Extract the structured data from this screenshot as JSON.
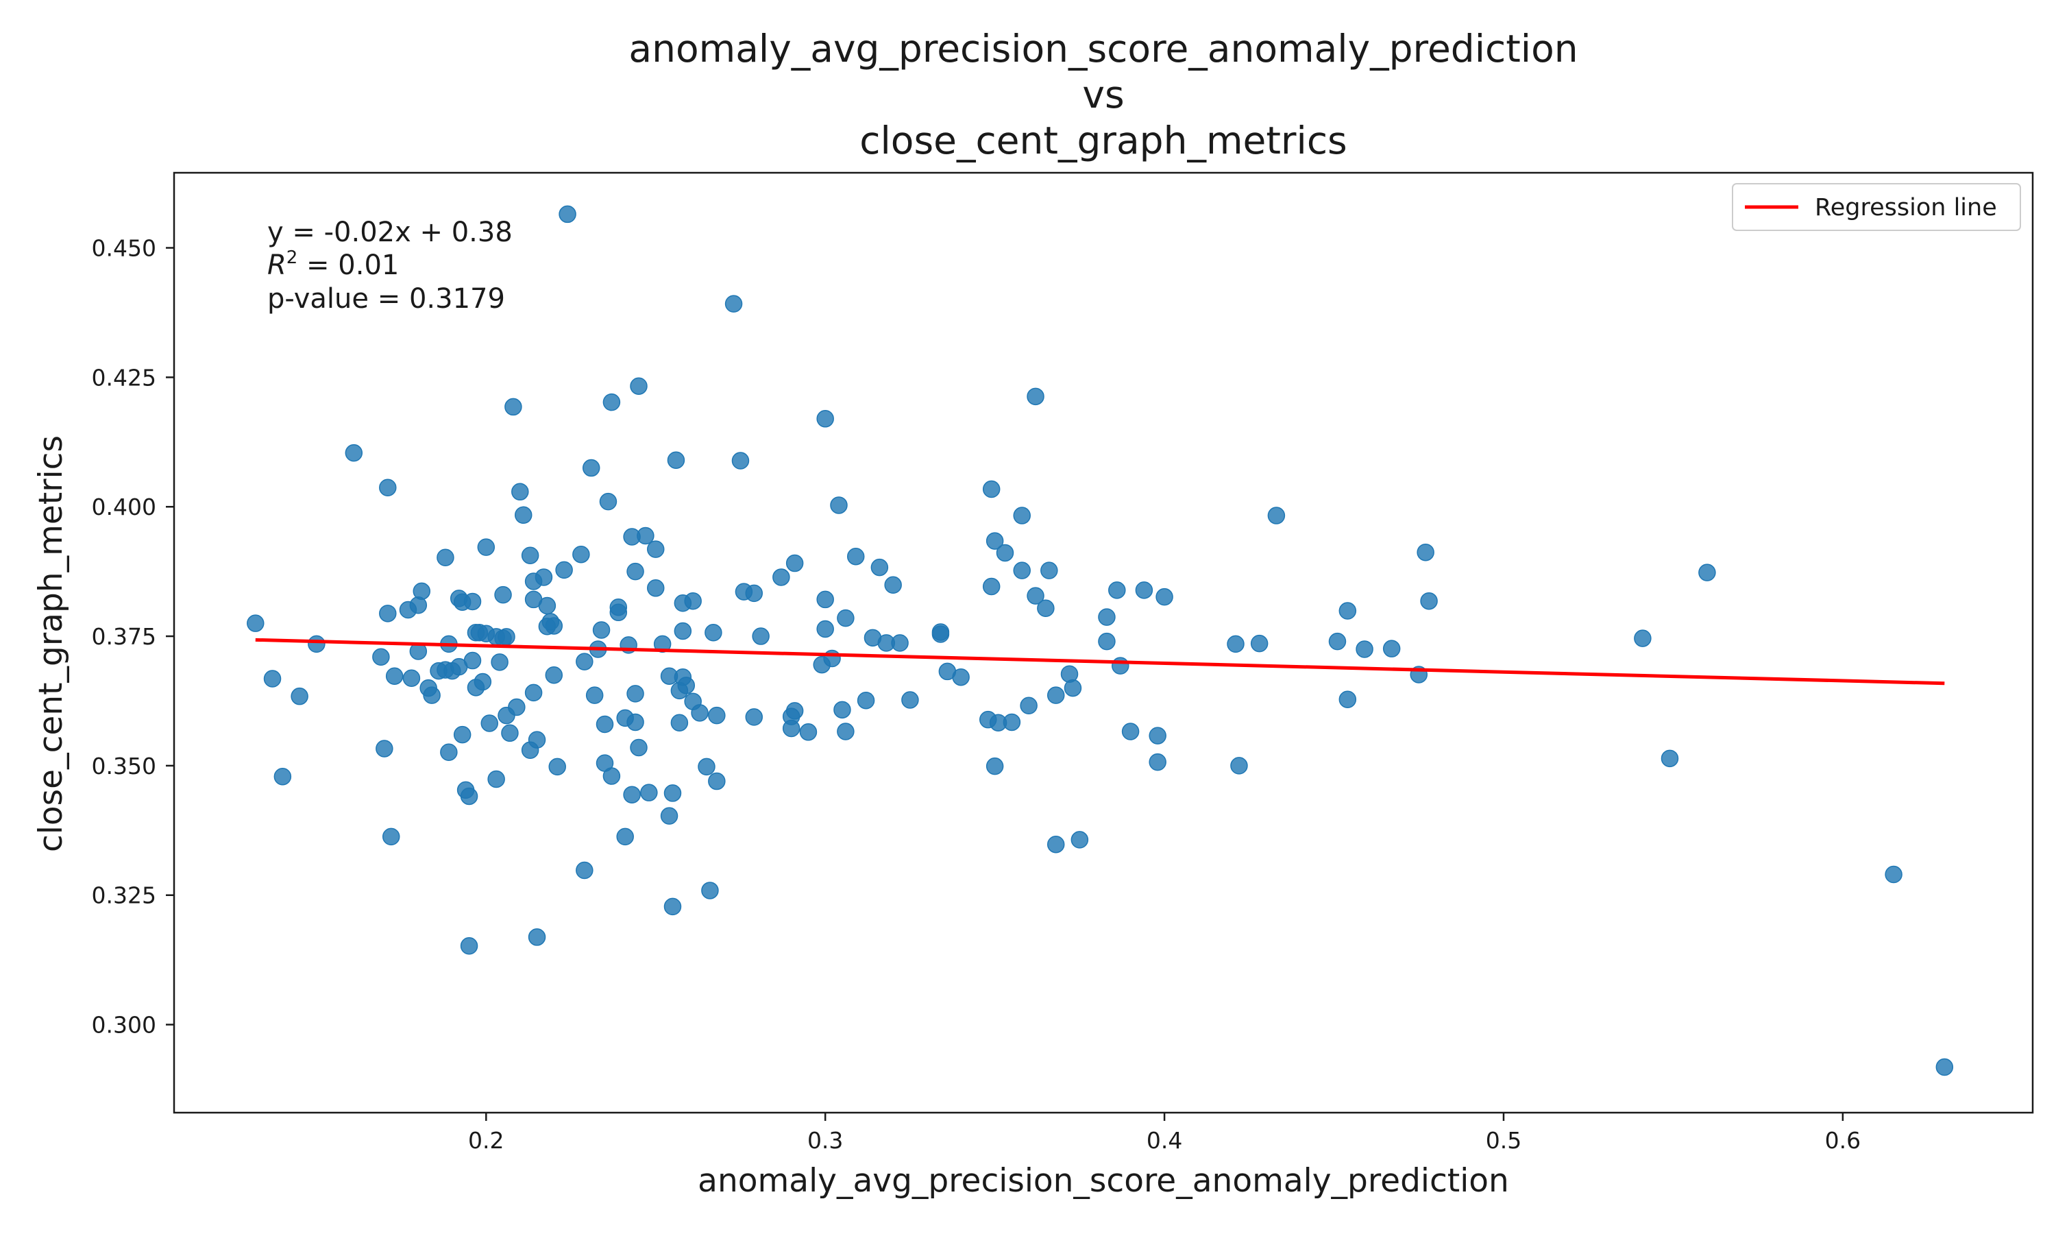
{
  "chart_data": {
    "type": "scatter",
    "title_lines": [
      "anomaly_avg_precision_score_anomaly_prediction",
      "vs",
      "close_cent_graph_metrics"
    ],
    "xlabel": "anomaly_avg_precision_score_anomaly_prediction",
    "ylabel": "close_cent_graph_metrics",
    "xlim": [
      0.108,
      0.656
    ],
    "ylim": [
      0.283,
      0.4645
    ],
    "x_ticks": [
      0.2,
      0.3,
      0.4,
      0.5,
      0.6
    ],
    "x_tick_labels": [
      "0.2",
      "0.3",
      "0.4",
      "0.5",
      "0.6"
    ],
    "y_ticks": [
      0.3,
      0.325,
      0.35,
      0.375,
      0.4,
      0.425,
      0.45
    ],
    "y_tick_labels": [
      "0.300",
      "0.325",
      "0.350",
      "0.375",
      "0.400",
      "0.425",
      "0.450"
    ],
    "grid": false,
    "legend_position": "top-right",
    "annotation": {
      "equation": "y = -0.02x + 0.38",
      "r2_label": "R",
      "r2_sup": "2",
      "r2_value": " = 0.01",
      "pvalue": "p-value = 0.3179"
    },
    "regression": {
      "name": "Regression line",
      "color": "#ff0000",
      "x_start": 0.132,
      "y_start": 0.3743,
      "x_end": 0.63,
      "y_end": 0.3659
    },
    "series": [
      {
        "name": "",
        "color": "#1f77b4",
        "points": [
          [
            0.132,
            0.3775
          ],
          [
            0.137,
            0.3668
          ],
          [
            0.14,
            0.3479
          ],
          [
            0.145,
            0.3634
          ],
          [
            0.15,
            0.3735
          ],
          [
            0.161,
            0.4104
          ],
          [
            0.169,
            0.371
          ],
          [
            0.17,
            0.3533
          ],
          [
            0.171,
            0.4037
          ],
          [
            0.171,
            0.3794
          ],
          [
            0.172,
            0.3363
          ],
          [
            0.173,
            0.3673
          ],
          [
            0.177,
            0.3801
          ],
          [
            0.178,
            0.3669
          ],
          [
            0.18,
            0.381
          ],
          [
            0.18,
            0.3721
          ],
          [
            0.181,
            0.3837
          ],
          [
            0.183,
            0.365
          ],
          [
            0.184,
            0.3636
          ],
          [
            0.186,
            0.3683
          ],
          [
            0.188,
            0.3685
          ],
          [
            0.188,
            0.3902
          ],
          [
            0.189,
            0.3735
          ],
          [
            0.189,
            0.3526
          ],
          [
            0.19,
            0.3683
          ],
          [
            0.192,
            0.3823
          ],
          [
            0.192,
            0.3691
          ],
          [
            0.193,
            0.3816
          ],
          [
            0.193,
            0.356
          ],
          [
            0.194,
            0.3453
          ],
          [
            0.195,
            0.3441
          ],
          [
            0.195,
            0.3152
          ],
          [
            0.196,
            0.3817
          ],
          [
            0.196,
            0.3703
          ],
          [
            0.197,
            0.3757
          ],
          [
            0.197,
            0.3651
          ],
          [
            0.198,
            0.3757
          ],
          [
            0.199,
            0.3662
          ],
          [
            0.2,
            0.3755
          ],
          [
            0.2,
            0.3922
          ],
          [
            0.201,
            0.3582
          ],
          [
            0.203,
            0.3749
          ],
          [
            0.203,
            0.3474
          ],
          [
            0.204,
            0.37
          ],
          [
            0.205,
            0.3746
          ],
          [
            0.205,
            0.383
          ],
          [
            0.206,
            0.3749
          ],
          [
            0.206,
            0.3597
          ],
          [
            0.207,
            0.3563
          ],
          [
            0.208,
            0.4193
          ],
          [
            0.209,
            0.3613
          ],
          [
            0.21,
            0.4029
          ],
          [
            0.211,
            0.3984
          ],
          [
            0.213,
            0.3906
          ],
          [
            0.213,
            0.353
          ],
          [
            0.214,
            0.3856
          ],
          [
            0.214,
            0.3821
          ],
          [
            0.214,
            0.3641
          ],
          [
            0.215,
            0.355
          ],
          [
            0.215,
            0.3169
          ],
          [
            0.217,
            0.3864
          ],
          [
            0.218,
            0.3809
          ],
          [
            0.218,
            0.3769
          ],
          [
            0.219,
            0.3778
          ],
          [
            0.22,
            0.377
          ],
          [
            0.22,
            0.3675
          ],
          [
            0.221,
            0.3498
          ],
          [
            0.223,
            0.3878
          ],
          [
            0.224,
            0.4565
          ],
          [
            0.228,
            0.3908
          ],
          [
            0.229,
            0.3701
          ],
          [
            0.229,
            0.3298
          ],
          [
            0.231,
            0.4075
          ],
          [
            0.232,
            0.3636
          ],
          [
            0.233,
            0.3725
          ],
          [
            0.234,
            0.3762
          ],
          [
            0.235,
            0.3505
          ],
          [
            0.235,
            0.358
          ],
          [
            0.236,
            0.401
          ],
          [
            0.237,
            0.4202
          ],
          [
            0.237,
            0.348
          ],
          [
            0.239,
            0.3796
          ],
          [
            0.239,
            0.3806
          ],
          [
            0.241,
            0.3363
          ],
          [
            0.241,
            0.3592
          ],
          [
            0.242,
            0.3733
          ],
          [
            0.243,
            0.3444
          ],
          [
            0.243,
            0.3942
          ],
          [
            0.244,
            0.3875
          ],
          [
            0.244,
            0.3639
          ],
          [
            0.244,
            0.3584
          ],
          [
            0.245,
            0.4233
          ],
          [
            0.245,
            0.3535
          ],
          [
            0.247,
            0.3944
          ],
          [
            0.248,
            0.3448
          ],
          [
            0.25,
            0.3918
          ],
          [
            0.25,
            0.3843
          ],
          [
            0.252,
            0.3735
          ],
          [
            0.254,
            0.3673
          ],
          [
            0.254,
            0.3403
          ],
          [
            0.255,
            0.3447
          ],
          [
            0.255,
            0.3228
          ],
          [
            0.256,
            0.409
          ],
          [
            0.257,
            0.3645
          ],
          [
            0.257,
            0.3583
          ],
          [
            0.258,
            0.3814
          ],
          [
            0.258,
            0.3671
          ],
          [
            0.258,
            0.376
          ],
          [
            0.259,
            0.3655
          ],
          [
            0.261,
            0.3818
          ],
          [
            0.261,
            0.3624
          ],
          [
            0.263,
            0.3602
          ],
          [
            0.265,
            0.3498
          ],
          [
            0.266,
            0.3259
          ],
          [
            0.267,
            0.3757
          ],
          [
            0.268,
            0.3597
          ],
          [
            0.268,
            0.347
          ],
          [
            0.273,
            0.4392
          ],
          [
            0.275,
            0.4089
          ],
          [
            0.276,
            0.3836
          ],
          [
            0.279,
            0.3833
          ],
          [
            0.279,
            0.3594
          ],
          [
            0.281,
            0.375
          ],
          [
            0.287,
            0.3864
          ],
          [
            0.29,
            0.3595
          ],
          [
            0.29,
            0.3572
          ],
          [
            0.291,
            0.3891
          ],
          [
            0.291,
            0.3606
          ],
          [
            0.295,
            0.3565
          ],
          [
            0.299,
            0.3695
          ],
          [
            0.3,
            0.417
          ],
          [
            0.3,
            0.3764
          ],
          [
            0.3,
            0.3821
          ],
          [
            0.302,
            0.3707
          ],
          [
            0.304,
            0.4003
          ],
          [
            0.305,
            0.3608
          ],
          [
            0.306,
            0.3785
          ],
          [
            0.306,
            0.3566
          ],
          [
            0.309,
            0.3904
          ],
          [
            0.312,
            0.3626
          ],
          [
            0.314,
            0.3747
          ],
          [
            0.316,
            0.3883
          ],
          [
            0.318,
            0.3737
          ],
          [
            0.32,
            0.3849
          ],
          [
            0.322,
            0.3737
          ],
          [
            0.325,
            0.3627
          ],
          [
            0.334,
            0.3758
          ],
          [
            0.334,
            0.3754
          ],
          [
            0.336,
            0.3682
          ],
          [
            0.34,
            0.3671
          ],
          [
            0.348,
            0.3589
          ],
          [
            0.349,
            0.4034
          ],
          [
            0.349,
            0.3846
          ],
          [
            0.35,
            0.3934
          ],
          [
            0.35,
            0.3499
          ],
          [
            0.351,
            0.3583
          ],
          [
            0.353,
            0.3911
          ],
          [
            0.355,
            0.3584
          ],
          [
            0.358,
            0.3983
          ],
          [
            0.358,
            0.3877
          ],
          [
            0.36,
            0.3616
          ],
          [
            0.362,
            0.3828
          ],
          [
            0.362,
            0.4213
          ],
          [
            0.365,
            0.3804
          ],
          [
            0.366,
            0.3877
          ],
          [
            0.368,
            0.3636
          ],
          [
            0.368,
            0.3348
          ],
          [
            0.372,
            0.3677
          ],
          [
            0.373,
            0.365
          ],
          [
            0.375,
            0.3357
          ],
          [
            0.383,
            0.3787
          ],
          [
            0.383,
            0.374
          ],
          [
            0.386,
            0.3839
          ],
          [
            0.387,
            0.3693
          ],
          [
            0.39,
            0.3566
          ],
          [
            0.394,
            0.3839
          ],
          [
            0.398,
            0.3558
          ],
          [
            0.398,
            0.3507
          ],
          [
            0.4,
            0.3826
          ],
          [
            0.421,
            0.3735
          ],
          [
            0.422,
            0.35
          ],
          [
            0.428,
            0.3736
          ],
          [
            0.433,
            0.3983
          ],
          [
            0.451,
            0.374
          ],
          [
            0.454,
            0.3628
          ],
          [
            0.454,
            0.3799
          ],
          [
            0.459,
            0.3725
          ],
          [
            0.467,
            0.3726
          ],
          [
            0.475,
            0.3676
          ],
          [
            0.477,
            0.3912
          ],
          [
            0.478,
            0.3818
          ],
          [
            0.541,
            0.3746
          ],
          [
            0.549,
            0.3514
          ],
          [
            0.56,
            0.3873
          ],
          [
            0.615,
            0.329
          ],
          [
            0.63,
            0.2918
          ]
        ]
      }
    ]
  }
}
